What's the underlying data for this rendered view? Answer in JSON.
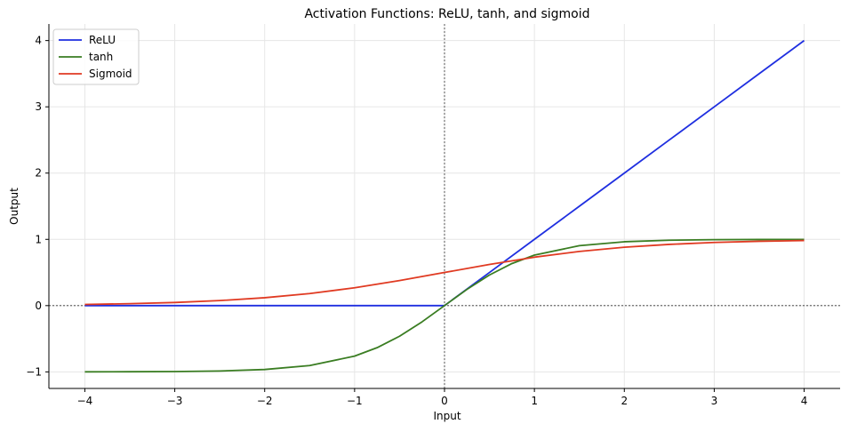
{
  "chart_data": {
    "type": "line",
    "title": "Activation Functions: ReLU, tanh, and sigmoid",
    "xlabel": "Input",
    "ylabel": "Output",
    "xlim": [
      -4.4,
      4.4
    ],
    "ylim": [
      -1.25,
      4.25
    ],
    "xticks": [
      -4,
      -3,
      -2,
      -1,
      0,
      1,
      2,
      3,
      4
    ],
    "yticks": [
      -1,
      0,
      1,
      2,
      3,
      4
    ],
    "xtick_labels": [
      "−4",
      "−3",
      "−2",
      "−1",
      "0",
      "1",
      "2",
      "3",
      "4"
    ],
    "ytick_labels": [
      "−1",
      "0",
      "1",
      "2",
      "3",
      "4"
    ],
    "grid": true,
    "legend_position": "top-left",
    "reference_lines": {
      "x": 0,
      "y": 0
    },
    "series": [
      {
        "name": "ReLU",
        "color": "#1f2fe0",
        "x": [
          -4,
          -3.5,
          -3,
          -2.5,
          -2,
          -1.5,
          -1,
          -0.5,
          0,
          0.5,
          1,
          1.5,
          2,
          2.5,
          3,
          3.5,
          4
        ],
        "y": [
          0,
          0,
          0,
          0,
          0,
          0,
          0,
          0,
          0,
          0.5,
          1,
          1.5,
          2,
          2.5,
          3,
          3.5,
          4
        ]
      },
      {
        "name": "tanh",
        "color": "#3a7d22",
        "x": [
          -4,
          -3.5,
          -3,
          -2.5,
          -2,
          -1.5,
          -1,
          -0.75,
          -0.5,
          -0.25,
          0,
          0.25,
          0.5,
          0.75,
          1,
          1.5,
          2,
          2.5,
          3,
          3.5,
          4
        ],
        "y": [
          -0.999,
          -0.998,
          -0.995,
          -0.987,
          -0.964,
          -0.905,
          -0.762,
          -0.635,
          -0.462,
          -0.245,
          0,
          0.245,
          0.462,
          0.635,
          0.762,
          0.905,
          0.964,
          0.987,
          0.995,
          0.998,
          0.999
        ]
      },
      {
        "name": "Sigmoid",
        "color": "#e03a22",
        "x": [
          -4,
          -3.5,
          -3,
          -2.5,
          -2,
          -1.5,
          -1,
          -0.5,
          0,
          0.5,
          1,
          1.5,
          2,
          2.5,
          3,
          3.5,
          4
        ],
        "y": [
          0.018,
          0.029,
          0.047,
          0.076,
          0.119,
          0.182,
          0.269,
          0.378,
          0.5,
          0.622,
          0.731,
          0.818,
          0.881,
          0.924,
          0.953,
          0.971,
          0.982
        ]
      }
    ]
  }
}
